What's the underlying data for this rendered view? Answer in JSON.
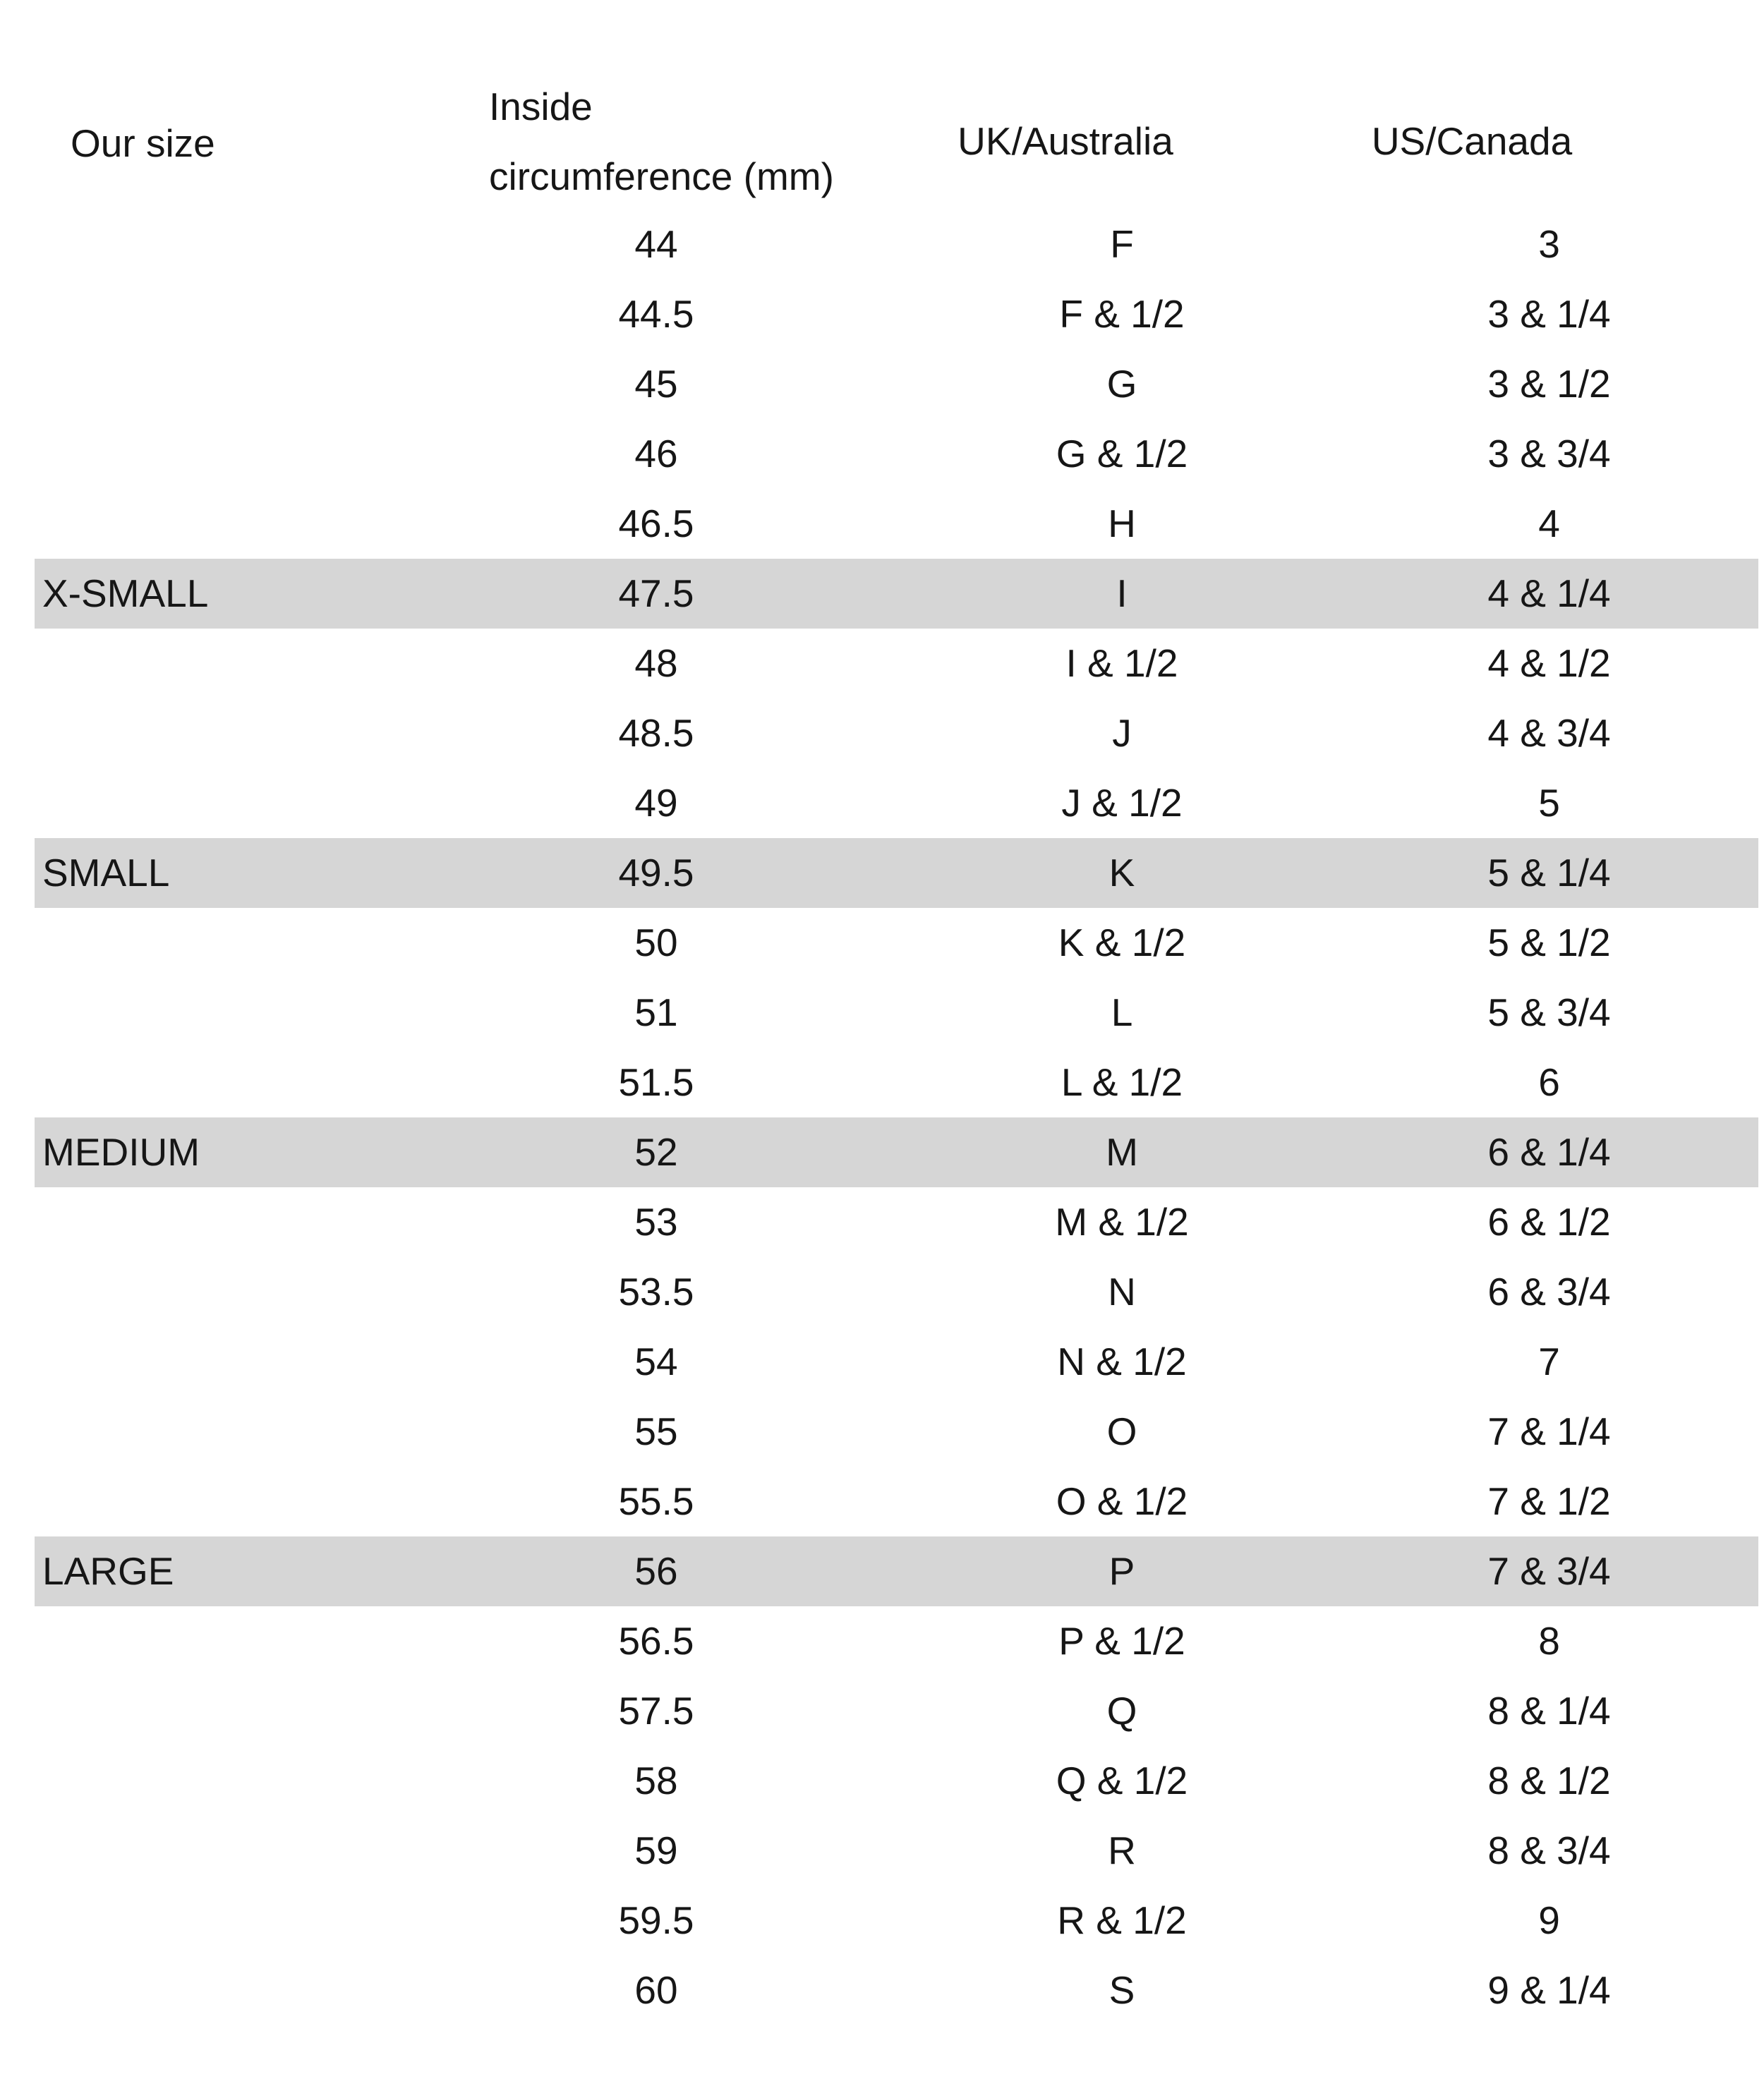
{
  "colors": {
    "background": "#ffffff",
    "text": "#161616",
    "highlight": "#d6d6d6"
  },
  "table": {
    "header": {
      "our_size": "Our size",
      "inside_line1": "Inside",
      "inside_line2": "circumference (mm)",
      "uk_australia": "UK/Australia",
      "us_canada": "US/Canada"
    },
    "rows": [
      {
        "size": "",
        "mm": "44",
        "uk": "F",
        "us": "3",
        "highlight": false
      },
      {
        "size": "",
        "mm": "44.5",
        "uk": "F & 1/2",
        "us": "3 & 1/4",
        "highlight": false
      },
      {
        "size": "",
        "mm": "45",
        "uk": "G",
        "us": "3 & 1/2",
        "highlight": false
      },
      {
        "size": "",
        "mm": "46",
        "uk": "G & 1/2",
        "us": "3 & 3/4",
        "highlight": false
      },
      {
        "size": "",
        "mm": "46.5",
        "uk": "H",
        "us": "4",
        "highlight": false
      },
      {
        "size": "X-SMALL",
        "mm": "47.5",
        "uk": "I",
        "us": "4 & 1/4",
        "highlight": true
      },
      {
        "size": "",
        "mm": "48",
        "uk": "I & 1/2",
        "us": "4 & 1/2",
        "highlight": false
      },
      {
        "size": "",
        "mm": "48.5",
        "uk": "J",
        "us": "4 & 3/4",
        "highlight": false
      },
      {
        "size": "",
        "mm": "49",
        "uk": "J & 1/2",
        "us": "5",
        "highlight": false
      },
      {
        "size": "SMALL",
        "mm": "49.5",
        "uk": "K",
        "us": "5 & 1/4",
        "highlight": true
      },
      {
        "size": "",
        "mm": "50",
        "uk": "K & 1/2",
        "us": "5 & 1/2",
        "highlight": false
      },
      {
        "size": "",
        "mm": "51",
        "uk": "L",
        "us": "5 & 3/4",
        "highlight": false
      },
      {
        "size": "",
        "mm": "51.5",
        "uk": "L & 1/2",
        "us": "6",
        "highlight": false
      },
      {
        "size": "MEDIUM",
        "mm": "52",
        "uk": "M",
        "us": "6 & 1/4",
        "highlight": true
      },
      {
        "size": "",
        "mm": "53",
        "uk": "M & 1/2",
        "us": "6 & 1/2",
        "highlight": false
      },
      {
        "size": "",
        "mm": "53.5",
        "uk": "N",
        "us": "6 & 3/4",
        "highlight": false
      },
      {
        "size": "",
        "mm": "54",
        "uk": "N & 1/2",
        "us": "7",
        "highlight": false
      },
      {
        "size": "",
        "mm": "55",
        "uk": "O",
        "us": "7 & 1/4",
        "highlight": false
      },
      {
        "size": "",
        "mm": "55.5",
        "uk": "O & 1/2",
        "us": "7 & 1/2",
        "highlight": false
      },
      {
        "size": "LARGE",
        "mm": "56",
        "uk": "P",
        "us": "7 & 3/4",
        "highlight": true
      },
      {
        "size": "",
        "mm": "56.5",
        "uk": "P & 1/2",
        "us": "8",
        "highlight": false
      },
      {
        "size": "",
        "mm": "57.5",
        "uk": "Q",
        "us": "8 & 1/4",
        "highlight": false
      },
      {
        "size": "",
        "mm": "58",
        "uk": "Q & 1/2",
        "us": "8 & 1/2",
        "highlight": false
      },
      {
        "size": "",
        "mm": "59",
        "uk": "R",
        "us": "8 & 3/4",
        "highlight": false
      },
      {
        "size": "",
        "mm": "59.5",
        "uk": "R & 1/2",
        "us": "9",
        "highlight": false
      },
      {
        "size": "",
        "mm": "60",
        "uk": "S",
        "us": "9 & 1/4",
        "highlight": false
      }
    ]
  }
}
